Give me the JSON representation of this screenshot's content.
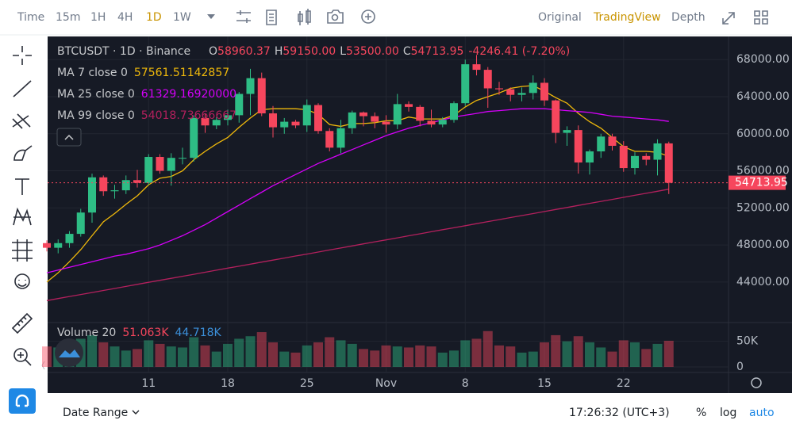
{
  "toolbar": {
    "left": [
      "Time",
      "15m",
      "1H",
      "4H",
      "1D",
      "1W"
    ],
    "right": [
      "Original",
      "TradingView",
      "Depth"
    ]
  },
  "footer": {
    "date_range": "Date Range",
    "time": "17:26:32 (UTC+3)",
    "percent": "%",
    "log": "log",
    "auto": "auto"
  },
  "chart_data": {
    "type": "candlestick",
    "symbol": "BTCUSDT · 1D · Binance",
    "ohlc_legend": {
      "o_label": "O",
      "o": "58960.37",
      "h_label": "H",
      "h": "59150.00",
      "l_label": "L",
      "l": "53500.00",
      "c_label": "C",
      "c": "54713.95",
      "change": "-4246.41 (-7.20%)"
    },
    "categories": [
      null,
      null,
      null,
      null,
      null,
      null,
      null,
      null,
      null,
      "11",
      null,
      null,
      null,
      null,
      null,
      null,
      "18",
      null,
      null,
      null,
      null,
      null,
      null,
      "25",
      null,
      null,
      null,
      null,
      null,
      null,
      "Nov",
      null,
      null,
      null,
      null,
      null,
      null,
      "8",
      null,
      null,
      null,
      null,
      null,
      null,
      "15",
      null,
      null,
      null,
      null,
      null,
      null,
      "22",
      null,
      null,
      null,
      null
    ],
    "open": [
      48200,
      47700,
      48200,
      49200,
      51500,
      55300,
      53800,
      53900,
      55000,
      54700,
      57500,
      56000,
      57400,
      57400,
      61700,
      60900,
      61500,
      62000,
      64300,
      66000,
      62200,
      60700,
      61300,
      60900,
      63100,
      60300,
      58500,
      60600,
      62300,
      61900,
      61300,
      61000,
      63200,
      62900,
      61400,
      61000,
      61500,
      63300,
      67500,
      66900,
      64900,
      64800,
      64200,
      64400,
      65500,
      63600,
      60100,
      60400,
      56900,
      58100,
      59700,
      58700,
      56300,
      57600,
      57200,
      58960.37
    ],
    "high": [
      48500,
      48600,
      49500,
      51900,
      55700,
      55500,
      54500,
      55500,
      56100,
      57800,
      57800,
      57900,
      58500,
      62000,
      62200,
      61800,
      62600,
      64500,
      67000,
      66600,
      63000,
      61700,
      61500,
      63700,
      63300,
      60600,
      61500,
      62500,
      62400,
      62300,
      62000,
      64300,
      63500,
      63100,
      62600,
      61800,
      63500,
      68000,
      68500,
      67200,
      65600,
      65000,
      65000,
      66300,
      66000,
      63700,
      60800,
      60900,
      58300,
      60000,
      60000,
      59200,
      58000,
      57900,
      59400,
      59150
    ],
    "low": [
      47300,
      47100,
      47700,
      48900,
      50400,
      53300,
      53000,
      53500,
      54200,
      54500,
      55700,
      54400,
      56700,
      57000,
      60100,
      60500,
      60900,
      61200,
      62000,
      61900,
      59600,
      60000,
      60600,
      60200,
      60000,
      58100,
      57900,
      60000,
      60800,
      60600,
      60100,
      60500,
      62400,
      60800,
      60700,
      60700,
      61200,
      63000,
      66300,
      62800,
      64200,
      63500,
      63500,
      63700,
      63000,
      59000,
      58700,
      55700,
      55600,
      57400,
      58200,
      55900,
      55600,
      56600,
      55500,
      53500
    ],
    "close": [
      47700,
      48200,
      49200,
      51500,
      55300,
      53800,
      53900,
      55000,
      54700,
      57500,
      56000,
      57400,
      57400,
      61700,
      60900,
      61500,
      62000,
      64300,
      66000,
      62200,
      60700,
      61300,
      60900,
      63100,
      60300,
      58500,
      60600,
      62300,
      61900,
      61300,
      61000,
      63200,
      62900,
      61400,
      61000,
      61500,
      63300,
      67500,
      66900,
      64900,
      64800,
      64200,
      64400,
      65500,
      63600,
      60100,
      60400,
      56900,
      58100,
      59700,
      58700,
      56300,
      57600,
      57200,
      58960.37,
      54713.95
    ],
    "up_color": "#2ebd85",
    "down_color": "#f6465d",
    "series": [
      {
        "name": "MA 7 close 0",
        "legend_value": "57561.51142857",
        "color": "#f0b90b",
        "values": [
          44000,
          45000,
          46200,
          47500,
          49000,
          50500,
          51400,
          52400,
          53300,
          54500,
          55200,
          55400,
          56000,
          57200,
          58100,
          58900,
          59600,
          60700,
          61700,
          62600,
          62700,
          62700,
          62700,
          62600,
          62100,
          61000,
          60800,
          61100,
          61100,
          61200,
          61400,
          61400,
          61800,
          61600,
          61600,
          61600,
          62000,
          62900,
          63600,
          64000,
          64400,
          64900,
          65100,
          65200,
          64600,
          63900,
          63300,
          62200,
          61300,
          60600,
          59600,
          58600,
          58100,
          58100,
          58000,
          57561.51
        ]
      },
      {
        "name": "MA 25 close 0",
        "legend_value": "61329.16920000",
        "color": "#d500f9",
        "values": [
          45000,
          45300,
          45600,
          45900,
          46200,
          46500,
          46800,
          47000,
          47300,
          47600,
          48000,
          48500,
          49000,
          49600,
          50200,
          50900,
          51600,
          52300,
          53000,
          53700,
          54400,
          55000,
          55600,
          56200,
          56800,
          57300,
          57800,
          58300,
          58800,
          59300,
          59800,
          60200,
          60600,
          60900,
          61200,
          61500,
          61800,
          62000,
          62200,
          62400,
          62500,
          62600,
          62700,
          62700,
          62700,
          62600,
          62500,
          62400,
          62300,
          62100,
          61900,
          61800,
          61700,
          61600,
          61500,
          61329.17
        ]
      },
      {
        "name": "MA 99 close 0",
        "legend_value": "54018.73666667",
        "color": "#b3205d",
        "values": [
          42000,
          42220,
          42440,
          42660,
          42870,
          43090,
          43310,
          43530,
          43750,
          43970,
          44190,
          44400,
          44620,
          44840,
          45060,
          45280,
          45500,
          45710,
          45930,
          46150,
          46370,
          46590,
          46810,
          47020,
          47240,
          47460,
          47680,
          47900,
          48120,
          48340,
          48550,
          48770,
          48990,
          49210,
          49430,
          49650,
          49860,
          50080,
          50300,
          50520,
          50740,
          50960,
          51170,
          51390,
          51610,
          51830,
          52050,
          52270,
          52490,
          52700,
          52920,
          53140,
          53360,
          53580,
          53800,
          54018.74
        ]
      }
    ],
    "ylim": [
      39800,
      70500
    ],
    "yticks": [
      {
        "value": 44000,
        "label": "44000.00"
      },
      {
        "value": 48000,
        "label": "48000.00"
      },
      {
        "value": 52000,
        "label": "52000.00"
      },
      {
        "value": 56000,
        "label": "56000.00"
      },
      {
        "value": 60000,
        "label": "60000.00"
      },
      {
        "value": 64000,
        "label": "64000.00"
      },
      {
        "value": 68000,
        "label": "68000.00"
      }
    ],
    "grid": true,
    "volume_legend": {
      "name": "Volume 20",
      "current": "51.063K",
      "average": "44.718K",
      "average_color": "#3b8fd9"
    },
    "volume": [
      40000,
      38000,
      42000,
      55000,
      62000,
      48000,
      40000,
      32000,
      35000,
      52000,
      45000,
      40000,
      38000,
      58000,
      42000,
      30000,
      45000,
      55000,
      60000,
      68000,
      48000,
      30000,
      28000,
      42000,
      48000,
      58000,
      52000,
      45000,
      35000,
      32000,
      42000,
      40000,
      38000,
      42000,
      40000,
      28000,
      32000,
      52000,
      55000,
      70000,
      42000,
      40000,
      28000,
      30000,
      48000,
      62000,
      50000,
      60000,
      48000,
      38000,
      30000,
      52000,
      48000,
      35000,
      45000,
      51063
    ],
    "vlim": [
      0,
      82000
    ],
    "vticks": [
      0,
      {
        "value": 50000,
        "label": "50K"
      }
    ]
  }
}
